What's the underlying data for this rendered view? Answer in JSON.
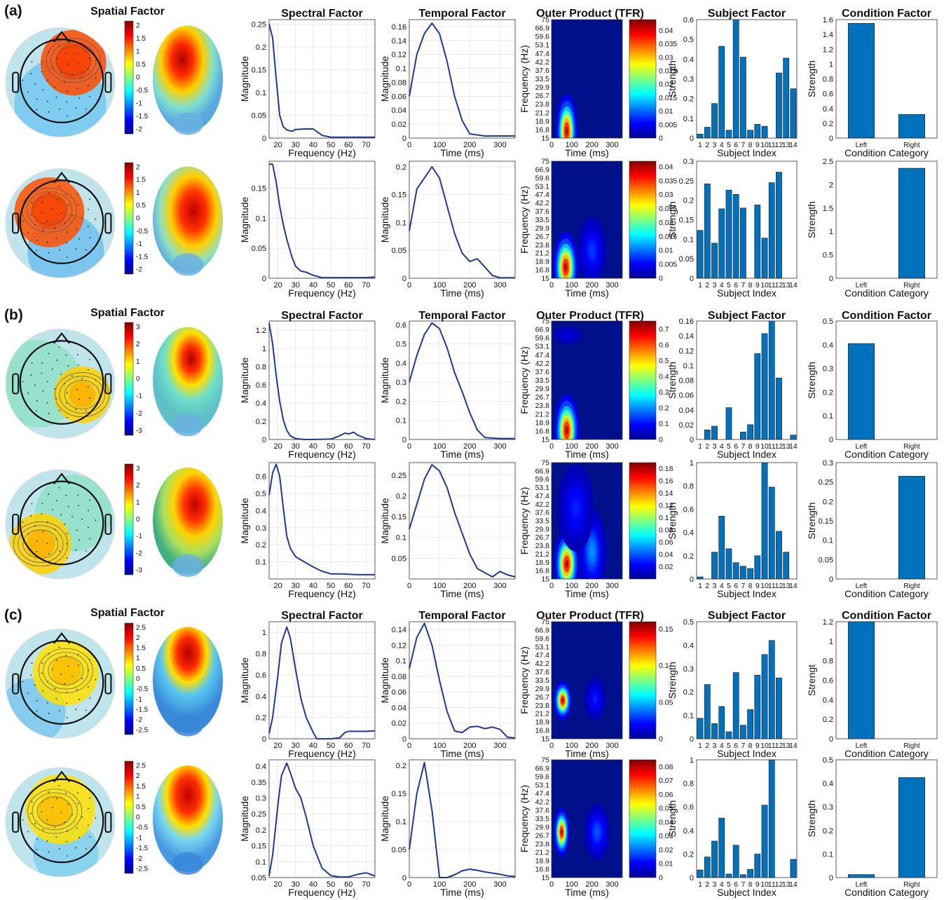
{
  "panel_tags": [
    "(a)",
    "(b)",
    "(c)"
  ],
  "column_titles": {
    "spatial": "Spatial Factor",
    "spectral": "Spectral Factor",
    "temporal": "Temporal Factor",
    "tfr": "Outer Product (TFR)",
    "subject": "Subject Factor",
    "condition": "Condition Factor"
  },
  "axis_labels": {
    "magnitude": "Magnitude",
    "frequency_hz": "Frequency (Hz)",
    "time_ms": "Time (ms)",
    "strength": "Strength",
    "strength_c": "Strengt",
    "subject_index": "Subject Index",
    "condition_category": "Condition Category"
  },
  "condition_categories": [
    "Left",
    "Right"
  ],
  "subject_ticks": [
    "1",
    "2",
    "3",
    "4",
    "5",
    "6",
    "7",
    "8",
    "9",
    "10",
    "11",
    "12",
    "13",
    "14"
  ],
  "tfr_freq_ticks": [
    "15",
    "16.8",
    "18.9",
    "21.2",
    "23.8",
    "26.7",
    "29.9",
    "33.5",
    "37.6",
    "42.2",
    "47.4",
    "53.1",
    "59.6",
    "66.9",
    "75"
  ],
  "colors": {
    "line": "#1f3a93",
    "bar": "#0072bd",
    "grid": "#e6e6e6"
  },
  "chart_data": [
    {
      "type": "line",
      "name": "(a) row 1 spectral",
      "x": [
        15,
        17,
        19,
        21,
        23,
        25,
        28,
        30,
        35,
        40,
        45,
        50,
        55,
        60,
        65,
        70,
        75
      ],
      "y": [
        0.25,
        0.22,
        0.13,
        0.05,
        0.025,
        0.018,
        0.015,
        0.019,
        0.02,
        0.02,
        0.006,
        0.002,
        0.002,
        0.002,
        0.002,
        0.002,
        0.002
      ],
      "ylim": [
        0,
        0.26
      ],
      "yticks": [
        0,
        0.05,
        0.1,
        0.15,
        0.2,
        0.25
      ],
      "xlim": [
        15,
        75
      ],
      "xticks": [
        20,
        30,
        40,
        50,
        60,
        70
      ]
    },
    {
      "type": "line",
      "name": "(a) row 1 temporal",
      "x": [
        0,
        25,
        50,
        75,
        100,
        125,
        150,
        175,
        200,
        250,
        300,
        350
      ],
      "y": [
        0.06,
        0.12,
        0.15,
        0.165,
        0.15,
        0.11,
        0.06,
        0.025,
        0.006,
        0.003,
        0.003,
        0.003
      ],
      "ylim": [
        0,
        0.17
      ],
      "yticks": [
        0,
        0.02,
        0.04,
        0.06,
        0.08,
        0.1,
        0.12,
        0.14,
        0.16
      ],
      "xlim": [
        0,
        350
      ],
      "xticks": [
        0,
        100,
        200,
        300
      ]
    },
    {
      "type": "heatmap",
      "name": "(a) row 1 TFR",
      "colorbar_ticks": [
        0,
        0.005,
        0.01,
        0.015,
        0.02,
        0.025,
        0.03,
        0.035,
        0.04
      ],
      "colorbar_max": 0.044,
      "blobs": [
        {
          "t": 75,
          "f": 16.5,
          "st": 30,
          "sf": 5,
          "a": 1.0
        }
      ]
    },
    {
      "type": "bar",
      "name": "(a) row 1 subject",
      "values": [
        0.02,
        0.055,
        0.175,
        0.465,
        0.04,
        0.6,
        0.41,
        0.04,
        0.07,
        0.06,
        0.0,
        0.33,
        0.405,
        0.25
      ],
      "ylim": [
        0,
        0.6
      ],
      "yticks": [
        0,
        0.1,
        0.2,
        0.3,
        0.4,
        0.5,
        0.6
      ]
    },
    {
      "type": "bar",
      "name": "(a) row 1 condition",
      "values": [
        1.55,
        0.32
      ],
      "ylim": [
        0,
        1.6
      ],
      "yticks": [
        0,
        0.2,
        0.4,
        0.6,
        0.8,
        1,
        1.2,
        1.4,
        1.6
      ]
    },
    {
      "type": "line",
      "name": "(a) row 2 spectral",
      "x": [
        15,
        17,
        19,
        21,
        23,
        25,
        28,
        30,
        33,
        36,
        40,
        45,
        50,
        60,
        70,
        75
      ],
      "y": [
        0.19,
        0.19,
        0.16,
        0.12,
        0.09,
        0.065,
        0.035,
        0.02,
        0.012,
        0.01,
        0.005,
        0.001,
        0.001,
        0.001,
        0.001,
        0.002
      ],
      "ylim": [
        0,
        0.195
      ],
      "yticks": [
        0,
        0.05,
        0.1,
        0.15
      ],
      "xlim": [
        15,
        75
      ],
      "xticks": [
        20,
        30,
        40,
        50,
        60,
        70
      ]
    },
    {
      "type": "line",
      "name": "(a) row 2 temporal",
      "x": [
        0,
        25,
        50,
        75,
        100,
        125,
        150,
        175,
        200,
        225,
        250,
        275,
        300,
        350
      ],
      "y": [
        0.085,
        0.16,
        0.18,
        0.2,
        0.18,
        0.13,
        0.08,
        0.045,
        0.03,
        0.035,
        0.02,
        0.005,
        0.001,
        0.001
      ],
      "ylim": [
        0,
        0.21
      ],
      "yticks": [
        0,
        0.05,
        0.1,
        0.15,
        0.2
      ],
      "xlim": [
        0,
        350
      ],
      "xticks": [
        0,
        100,
        200,
        300
      ]
    },
    {
      "type": "heatmap",
      "name": "(a) row 2 TFR",
      "colorbar_ticks": [
        0,
        0.005,
        0.01,
        0.015,
        0.02,
        0.025,
        0.03,
        0.035,
        0.04
      ],
      "colorbar_max": 0.042,
      "blobs": [
        {
          "t": 70,
          "f": 17.5,
          "st": 35,
          "sf": 5,
          "a": 1.0
        },
        {
          "t": 200,
          "f": 22,
          "st": 40,
          "sf": 6,
          "a": 0.15
        }
      ]
    },
    {
      "type": "bar",
      "name": "(a) row 2 subject",
      "values": [
        0.123,
        0.242,
        0.09,
        0.178,
        0.226,
        0.215,
        0.18,
        0.0,
        0.188,
        0.103,
        0.245,
        0.272,
        0.0,
        0.0
      ],
      "ylim": [
        0,
        0.3
      ],
      "yticks": [
        0,
        0.05,
        0.1,
        0.15,
        0.2,
        0.25,
        0.3
      ]
    },
    {
      "type": "bar",
      "name": "(a) row 2 condition",
      "values": [
        0.0,
        2.35
      ],
      "ylim": [
        0,
        2.5
      ],
      "yticks": [
        0,
        0.5,
        1,
        1.5,
        2,
        2.5
      ]
    },
    {
      "type": "line",
      "name": "(b) row 1 spectral",
      "x": [
        15,
        17,
        19,
        21,
        23,
        25,
        27,
        30,
        35,
        40,
        50,
        55,
        58,
        60,
        63,
        65,
        70,
        75
      ],
      "y": [
        1.28,
        1.05,
        0.7,
        0.42,
        0.22,
        0.1,
        0.04,
        0.01,
        0.0,
        0.0,
        0.005,
        0.04,
        0.07,
        0.06,
        0.08,
        0.05,
        0.01,
        0.0
      ],
      "ylim": [
        0,
        1.3
      ],
      "yticks": [
        0,
        0.2,
        0.4,
        0.6,
        0.8,
        1,
        1.2
      ],
      "xlim": [
        15,
        75
      ],
      "xticks": [
        20,
        30,
        40,
        50,
        60,
        70
      ]
    },
    {
      "type": "line",
      "name": "(b) row 1 temporal",
      "x": [
        0,
        25,
        50,
        75,
        100,
        125,
        150,
        175,
        200,
        225,
        250,
        300,
        350
      ],
      "y": [
        0.3,
        0.44,
        0.55,
        0.61,
        0.58,
        0.48,
        0.35,
        0.25,
        0.14,
        0.05,
        0.01,
        0.005,
        0.005
      ],
      "ylim": [
        0,
        0.62
      ],
      "yticks": [
        0,
        0.1,
        0.2,
        0.3,
        0.4,
        0.5,
        0.6
      ],
      "xlim": [
        0,
        350
      ],
      "xticks": [
        0,
        100,
        200,
        300
      ]
    },
    {
      "type": "heatmap",
      "name": "(b) row 1 TFR",
      "colorbar_ticks": [
        0,
        0.1,
        0.2,
        0.3,
        0.4,
        0.5,
        0.6,
        0.7
      ],
      "colorbar_max": 0.75,
      "blobs": [
        {
          "t": 75,
          "f": 17,
          "st": 35,
          "sf": 5,
          "a": 1.0
        },
        {
          "t": 80,
          "f": 62,
          "st": 40,
          "sf": 3,
          "a": 0.05
        }
      ]
    },
    {
      "type": "bar",
      "name": "(b) row 1 subject",
      "values": [
        0.0,
        0.013,
        0.018,
        0.0,
        0.043,
        0.0,
        0.01,
        0.02,
        0.116,
        0.143,
        0.16,
        0.083,
        0.0,
        0.006
      ],
      "ylim": [
        0,
        0.16
      ],
      "yticks": [
        0,
        0.02,
        0.04,
        0.06,
        0.08,
        0.1,
        0.12,
        0.14,
        0.16
      ]
    },
    {
      "type": "bar",
      "name": "(b) row 1 condition",
      "values": [
        0.405,
        0.0
      ],
      "ylim": [
        0,
        0.5
      ],
      "yticks": [
        0,
        0.1,
        0.2,
        0.3,
        0.4,
        0.5
      ]
    },
    {
      "type": "line",
      "name": "(b) row 2 spectral",
      "x": [
        15,
        17,
        19,
        21,
        23,
        25,
        27,
        30,
        35,
        40,
        45,
        50,
        55,
        60,
        65,
        70,
        75
      ],
      "y": [
        0.49,
        0.62,
        0.67,
        0.6,
        0.42,
        0.25,
        0.18,
        0.13,
        0.1,
        0.07,
        0.045,
        0.03,
        0.03,
        0.028,
        0.025,
        0.025,
        0.025
      ],
      "ylim": [
        0,
        0.68
      ],
      "yticks": [
        0.1,
        0.2,
        0.3,
        0.4,
        0.5,
        0.6
      ],
      "xlim": [
        15,
        75
      ],
      "xticks": [
        20,
        30,
        40,
        50,
        60,
        70
      ]
    },
    {
      "type": "line",
      "name": "(b) row 2 temporal",
      "x": [
        0,
        25,
        50,
        75,
        100,
        125,
        150,
        175,
        200,
        225,
        250,
        275,
        300,
        325,
        350
      ],
      "y": [
        0.12,
        0.18,
        0.24,
        0.275,
        0.26,
        0.22,
        0.16,
        0.11,
        0.06,
        0.025,
        0.015,
        0.005,
        0.018,
        0.01,
        0.005
      ],
      "ylim": [
        0,
        0.28
      ],
      "yticks": [
        0.05,
        0.1,
        0.15,
        0.2,
        0.25
      ],
      "xlim": [
        0,
        350
      ],
      "xticks": [
        0,
        100,
        200,
        300
      ]
    },
    {
      "type": "heatmap",
      "name": "(b) row 2 TFR",
      "colorbar_ticks": [
        0.02,
        0.04,
        0.06,
        0.08,
        0.1,
        0.12,
        0.14,
        0.16,
        0.18
      ],
      "colorbar_max": 0.19,
      "blobs": [
        {
          "t": 75,
          "f": 18.5,
          "st": 35,
          "sf": 5,
          "a": 1.0
        },
        {
          "t": 200,
          "f": 22,
          "st": 40,
          "sf": 8,
          "a": 0.25
        },
        {
          "t": 120,
          "f": 40,
          "st": 50,
          "sf": 15,
          "a": 0.12
        }
      ]
    },
    {
      "type": "bar",
      "name": "(b) row 2 subject",
      "values": [
        0.018,
        0.0,
        0.23,
        0.54,
        0.26,
        0.14,
        0.11,
        0.09,
        0.2,
        1.0,
        0.79,
        0.41,
        0.23,
        0.0
      ],
      "ylim": [
        0,
        1.0
      ],
      "yticks": [
        0,
        0.2,
        0.4,
        0.6,
        0.8,
        1
      ]
    },
    {
      "type": "bar",
      "name": "(b) row 2 condition",
      "values": [
        0.0,
        0.265
      ],
      "ylim": [
        0,
        0.3
      ],
      "yticks": [
        0,
        0.05,
        0.1,
        0.15,
        0.2,
        0.25,
        0.3
      ]
    },
    {
      "type": "line",
      "name": "(c) row 1 spectral",
      "x": [
        15,
        17,
        20,
        22,
        25,
        27,
        30,
        33,
        36,
        40,
        42,
        50,
        55,
        58,
        60,
        65,
        70,
        75
      ],
      "y": [
        0.05,
        0.2,
        0.6,
        0.9,
        1.05,
        0.95,
        0.65,
        0.38,
        0.2,
        0.06,
        0.0,
        0.0,
        0.01,
        0.06,
        0.07,
        0.07,
        0.07,
        0.075
      ],
      "ylim": [
        0,
        1.1
      ],
      "yticks": [
        0,
        0.2,
        0.4,
        0.6,
        0.8,
        1
      ],
      "xlim": [
        15,
        75
      ],
      "xticks": [
        20,
        30,
        40,
        50,
        60,
        70
      ]
    },
    {
      "type": "line",
      "name": "(c) row 1 temporal",
      "x": [
        0,
        25,
        50,
        75,
        100,
        125,
        150,
        175,
        200,
        225,
        250,
        275,
        300,
        325,
        350
      ],
      "y": [
        0.09,
        0.13,
        0.148,
        0.12,
        0.075,
        0.035,
        0.01,
        0.008,
        0.015,
        0.016,
        0.013,
        0.015,
        0.012,
        0.002,
        0.001
      ],
      "ylim": [
        0,
        0.15
      ],
      "yticks": [
        0,
        0.02,
        0.04,
        0.06,
        0.08,
        0.1,
        0.12,
        0.14
      ],
      "xlim": [
        0,
        350
      ],
      "xticks": [
        0,
        100,
        200,
        300
      ]
    },
    {
      "type": "heatmap",
      "name": "(c) row 1 TFR",
      "colorbar_ticks": [
        0,
        0.05,
        0.1,
        0.15
      ],
      "colorbar_max": 0.16,
      "blobs": [
        {
          "t": 55,
          "f": 25.5,
          "st": 25,
          "sf": 3.5,
          "a": 1.0
        },
        {
          "t": 215,
          "f": 26,
          "st": 30,
          "sf": 4,
          "a": 0.12
        }
      ]
    },
    {
      "type": "bar",
      "name": "(c) row 1 subject",
      "values": [
        0.088,
        0.232,
        0.065,
        0.138,
        0.03,
        0.283,
        0.058,
        0.125,
        0.272,
        0.36,
        0.42,
        0.26,
        0.0,
        0.0
      ],
      "ylim": [
        0,
        0.5
      ],
      "yticks": [
        0,
        0.1,
        0.2,
        0.3,
        0.4,
        0.5
      ]
    },
    {
      "type": "bar",
      "name": "(c) row 1 condition",
      "values": [
        1.2,
        0.0
      ],
      "ylim": [
        0,
        1.2
      ],
      "yticks": [
        0,
        0.2,
        0.4,
        0.6,
        0.8,
        1,
        1.2
      ]
    },
    {
      "type": "line",
      "name": "(c) row 2 spectral",
      "x": [
        15,
        17,
        20,
        22,
        25,
        27,
        30,
        33,
        36,
        40,
        45,
        50,
        55,
        60,
        65,
        70,
        75
      ],
      "y": [
        0.055,
        0.12,
        0.28,
        0.37,
        0.41,
        0.38,
        0.33,
        0.3,
        0.24,
        0.15,
        0.08,
        0.056,
        0.052,
        0.052,
        0.06,
        0.065,
        0.055
      ],
      "ylim": [
        0.05,
        0.42
      ],
      "yticks": [
        0.05,
        0.1,
        0.15,
        0.2,
        0.25,
        0.3,
        0.35,
        0.4
      ],
      "xlim": [
        15,
        75
      ],
      "xticks": [
        20,
        30,
        40,
        50,
        60,
        70
      ]
    },
    {
      "type": "line",
      "name": "(c) row 2 temporal",
      "x": [
        0,
        25,
        50,
        75,
        100,
        125,
        150,
        175,
        200,
        225,
        250,
        275,
        300,
        325,
        350
      ],
      "y": [
        0.05,
        0.15,
        0.205,
        0.12,
        0.0,
        0.0,
        0.005,
        0.012,
        0.015,
        0.013,
        0.01,
        0.008,
        0.006,
        0.003,
        0.002
      ],
      "ylim": [
        0,
        0.21
      ],
      "yticks": [
        0,
        0.05,
        0.1,
        0.15,
        0.2
      ],
      "xlim": [
        0,
        350
      ],
      "xticks": [
        0,
        100,
        200,
        300
      ]
    },
    {
      "type": "heatmap",
      "name": "(c) row 2 TFR",
      "colorbar_ticks": [
        0,
        0.01,
        0.02,
        0.03,
        0.04,
        0.05,
        0.06,
        0.07,
        0.08
      ],
      "colorbar_max": 0.085,
      "blobs": [
        {
          "t": 50,
          "f": 28,
          "st": 22,
          "sf": 5,
          "a": 1.0
        },
        {
          "t": 225,
          "f": 28,
          "st": 35,
          "sf": 6,
          "a": 0.18
        }
      ]
    },
    {
      "type": "bar",
      "name": "(c) row 2 subject",
      "values": [
        0.065,
        0.175,
        0.31,
        0.505,
        0.03,
        0.275,
        0.025,
        0.07,
        0.2,
        0.615,
        1.0,
        0.0,
        0.0,
        0.155
      ],
      "ylim": [
        0,
        1.0
      ],
      "yticks": [
        0,
        0.2,
        0.4,
        0.6,
        0.8,
        1
      ]
    },
    {
      "type": "bar",
      "name": "(c) row 2 condition",
      "values": [
        0.013,
        0.425
      ],
      "ylim": [
        0,
        0.5
      ],
      "yticks": [
        0,
        0.1,
        0.2,
        0.3,
        0.4,
        0.5
      ]
    }
  ]
}
